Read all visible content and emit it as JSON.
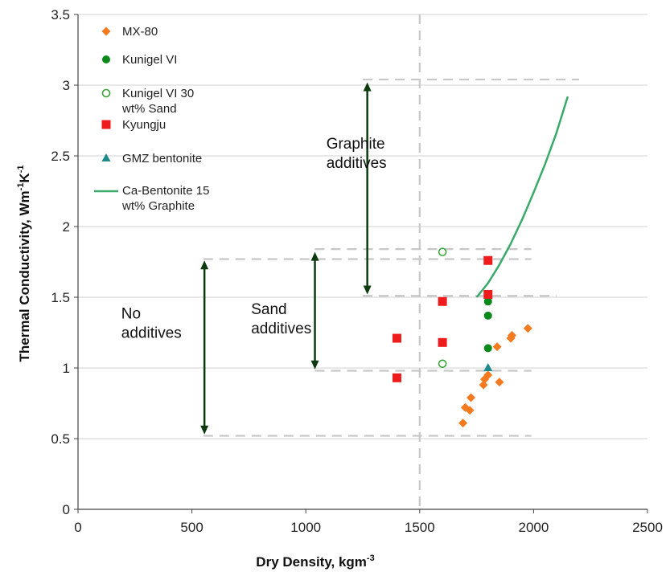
{
  "chart_data": {
    "type": "scatter",
    "xlabel": "Dry Density, kgm",
    "xlabel_sup": "-3",
    "ylabel": "Thermal Conductivity, Wm",
    "ylabel_sup1": "-1",
    "ylabel_mid": "K",
    "ylabel_sup2": "-1",
    "xlim": [
      0,
      2500
    ],
    "ylim": [
      0,
      3.5
    ],
    "xticks": [
      0,
      500,
      1000,
      1500,
      2000,
      2500
    ],
    "yticks": [
      0,
      0.5,
      1,
      1.5,
      2,
      2.5,
      3,
      3.5
    ],
    "ytick_labels": [
      "0",
      "0.5",
      "1",
      "1.5",
      "2",
      "2.5",
      "3",
      "3.5"
    ],
    "grid": "horizontal",
    "legend_position": "top-left",
    "series": [
      {
        "name": "MX-80",
        "marker": "diamond",
        "color": "#f47a20",
        "points": [
          [
            1690,
            0.61
          ],
          [
            1700,
            0.72
          ],
          [
            1720,
            0.7
          ],
          [
            1725,
            0.79
          ],
          [
            1780,
            0.88
          ],
          [
            1785,
            0.92
          ],
          [
            1800,
            0.95
          ],
          [
            1840,
            1.15
          ],
          [
            1850,
            0.9
          ],
          [
            1900,
            1.21
          ],
          [
            1905,
            1.23
          ],
          [
            1975,
            1.28
          ]
        ]
      },
      {
        "name": "Kunigel VI",
        "marker": "circle",
        "color": "#0a8a1a",
        "points": [
          [
            1600,
            1.47
          ],
          [
            1800,
            1.47
          ],
          [
            1800,
            1.37
          ],
          [
            1800,
            1.14
          ]
        ]
      },
      {
        "name": "Kunigel VI 30 wt% Sand",
        "marker": "open-circle",
        "color": "#2aa52a",
        "points": [
          [
            1600,
            1.82
          ],
          [
            1600,
            1.03
          ]
        ]
      },
      {
        "name": "Kyungju",
        "marker": "square",
        "color": "#ee1c1c",
        "points": [
          [
            1400,
            1.21
          ],
          [
            1400,
            0.93
          ],
          [
            1600,
            1.47
          ],
          [
            1600,
            1.18
          ],
          [
            1800,
            1.76
          ],
          [
            1800,
            1.52
          ]
        ]
      },
      {
        "name": "GMZ bentonite",
        "marker": "triangle",
        "color": "#1a8a8a",
        "points": [
          [
            1800,
            1.0
          ]
        ]
      },
      {
        "name": "Ca-Bentonite 15 wt% Graphite",
        "marker": "line",
        "color": "#3aaa6a",
        "points": [
          [
            1750,
            1.5
          ],
          [
            1800,
            1.6
          ],
          [
            1850,
            1.73
          ],
          [
            1900,
            1.88
          ],
          [
            1950,
            2.05
          ],
          [
            2000,
            2.24
          ],
          [
            2050,
            2.44
          ],
          [
            2100,
            2.66
          ],
          [
            2150,
            2.92
          ]
        ]
      }
    ],
    "legend_labels": [
      [
        "MX-80"
      ],
      [
        "Kunigel VI"
      ],
      [
        "Kunigel VI 30",
        "wt% Sand"
      ],
      [
        "Kyungju"
      ],
      [
        "GMZ bentonite"
      ],
      [
        "Ca-Bentonite 15",
        "wt% Graphite"
      ]
    ],
    "reference_lines": {
      "vertical_x": 1500,
      "horizontal_dashed": [
        {
          "y": 3.04,
          "x0": 1250,
          "x1": 2200
        },
        {
          "y": 1.84,
          "x0": 1040,
          "x1": 1990
        },
        {
          "y": 1.77,
          "x0": 550,
          "x1": 1990
        },
        {
          "y": 1.51,
          "x0": 1250,
          "x1": 2100
        },
        {
          "y": 0.98,
          "x0": 1040,
          "x1": 1990
        },
        {
          "y": 0.52,
          "x0": 550,
          "x1": 1990
        }
      ]
    },
    "annotations": [
      {
        "name": "graphite",
        "lines": [
          "Graphite",
          "additives"
        ],
        "x": 1090,
        "y": 2.55,
        "arrow": {
          "x": 1270,
          "y0": 1.52,
          "y1": 3.02
        }
      },
      {
        "name": "sand",
        "lines": [
          "Sand",
          "additives"
        ],
        "x": 760,
        "y": 1.38,
        "arrow": {
          "x": 1040,
          "y0": 0.99,
          "y1": 1.82
        }
      },
      {
        "name": "none",
        "lines": [
          "No",
          "additives"
        ],
        "x": 190,
        "y": 1.35,
        "arrow": {
          "x": 555,
          "y0": 0.53,
          "y1": 1.76
        }
      }
    ]
  }
}
